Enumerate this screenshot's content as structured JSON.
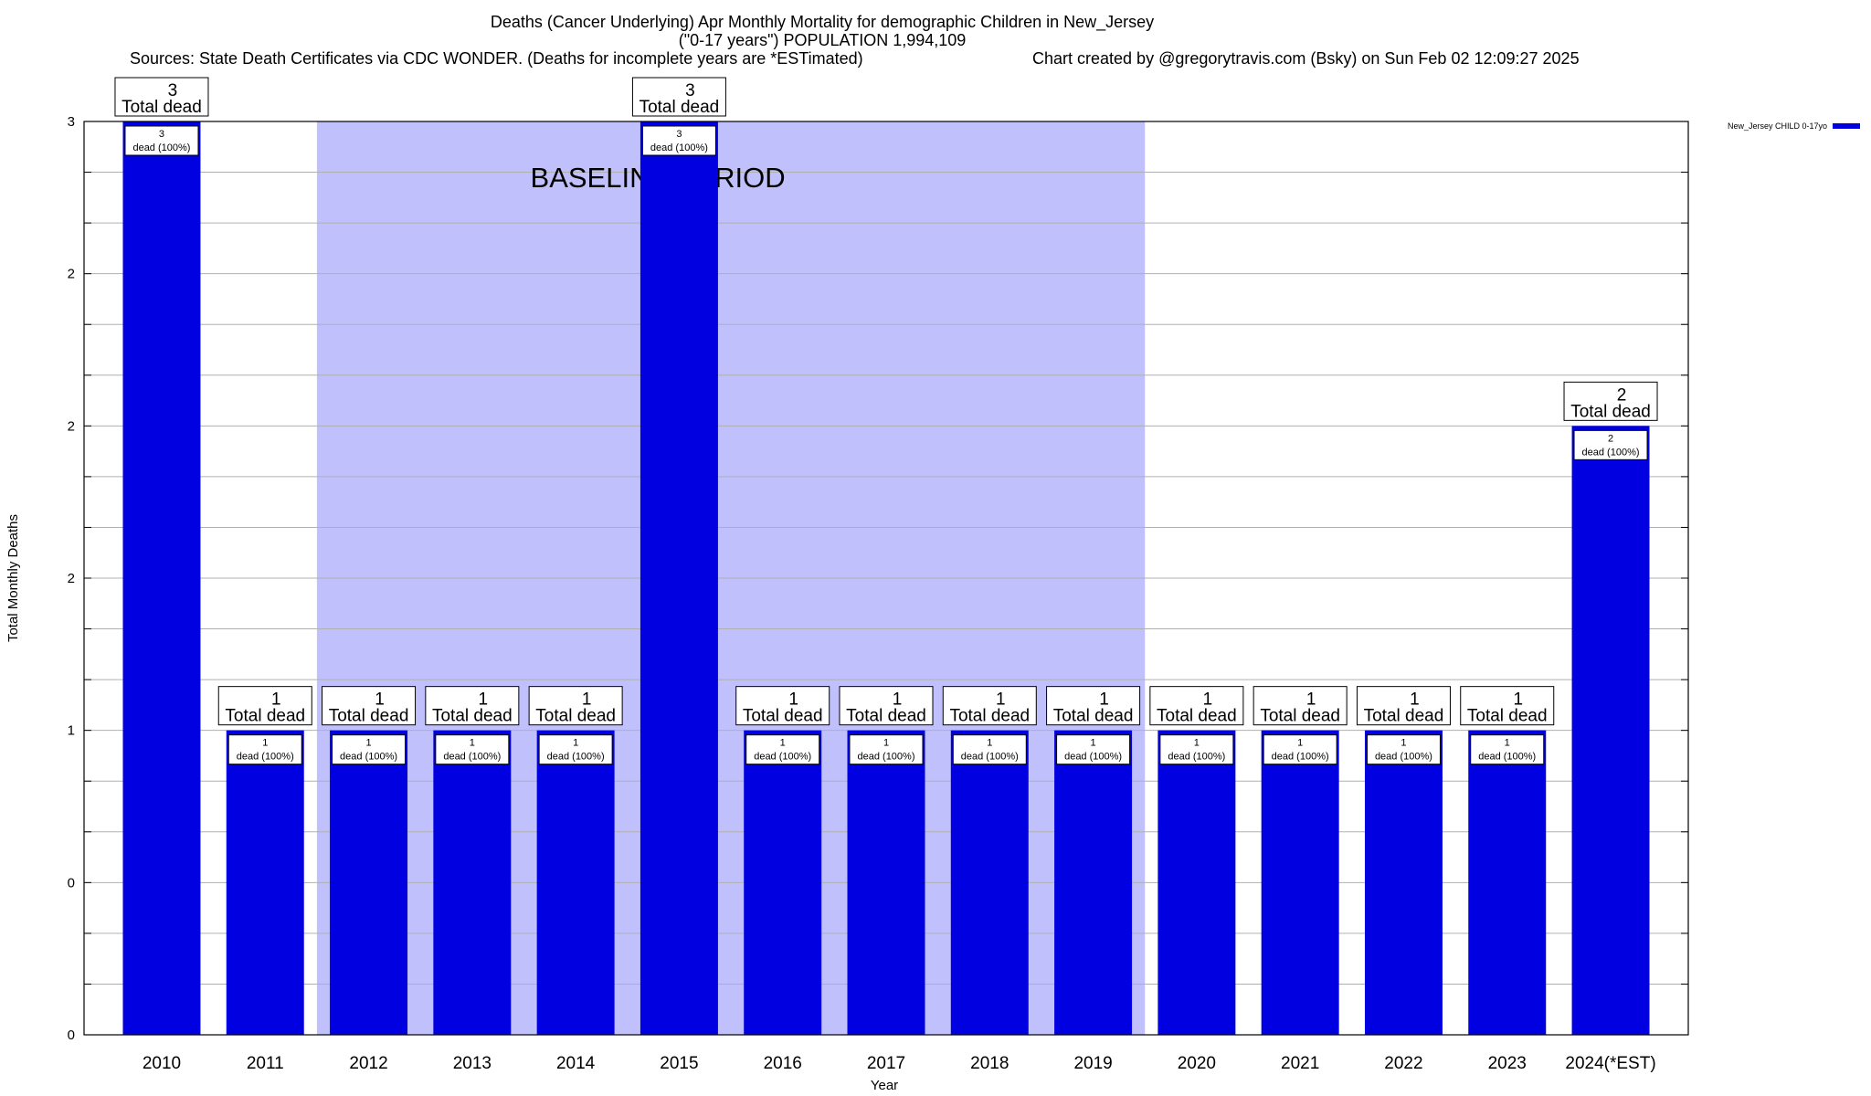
{
  "title": "Deaths (Cancer Underlying) Apr Monthly Mortality for demographic Children in New_Jersey",
  "subtitle": "(\"0-17 years\") POPULATION 1,994,109",
  "sources": "Sources: State Death Certificates via CDC WONDER. (Deaths for incomplete years are *ESTimated)",
  "credit": "Chart created by @gregorytravis.com (Bsky) on Sun Feb 02 12:09:27 2025",
  "colors": {
    "bar": "#0000e0",
    "baseline_band": "#c0c0fc",
    "grid": "#b0b0b0"
  },
  "chart_data": {
    "type": "bar",
    "title": "Deaths (Cancer Underlying) Apr Monthly Mortality for demographic Children in New_Jersey",
    "xlabel": "Year",
    "ylabel": "Total Monthly Deaths",
    "categories": [
      "2010",
      "2011",
      "2012",
      "2013",
      "2014",
      "2015",
      "2016",
      "2017",
      "2018",
      "2019",
      "2020",
      "2021",
      "2022",
      "2023",
      "2024(*EST)"
    ],
    "series": [
      {
        "name": "New_Jersey CHILD 0-17yo",
        "values": [
          3,
          1,
          1,
          1,
          1,
          3,
          1,
          1,
          1,
          1,
          1,
          1,
          1,
          1,
          2
        ]
      }
    ],
    "ylim": [
      0,
      3
    ],
    "yticks": [
      0,
      0.5,
      1,
      1.5,
      2,
      2.5,
      3
    ],
    "ytick_labels": [
      "0",
      "0",
      "1",
      "2",
      "2",
      "2",
      "3"
    ],
    "grid": true,
    "legend": "top-right",
    "bar_total_label": "Total dead",
    "bar_inner_label": "dead (100%)",
    "baseline_band": {
      "label": "BASELINE PERIOD",
      "from": "2012",
      "to": "2019"
    }
  }
}
